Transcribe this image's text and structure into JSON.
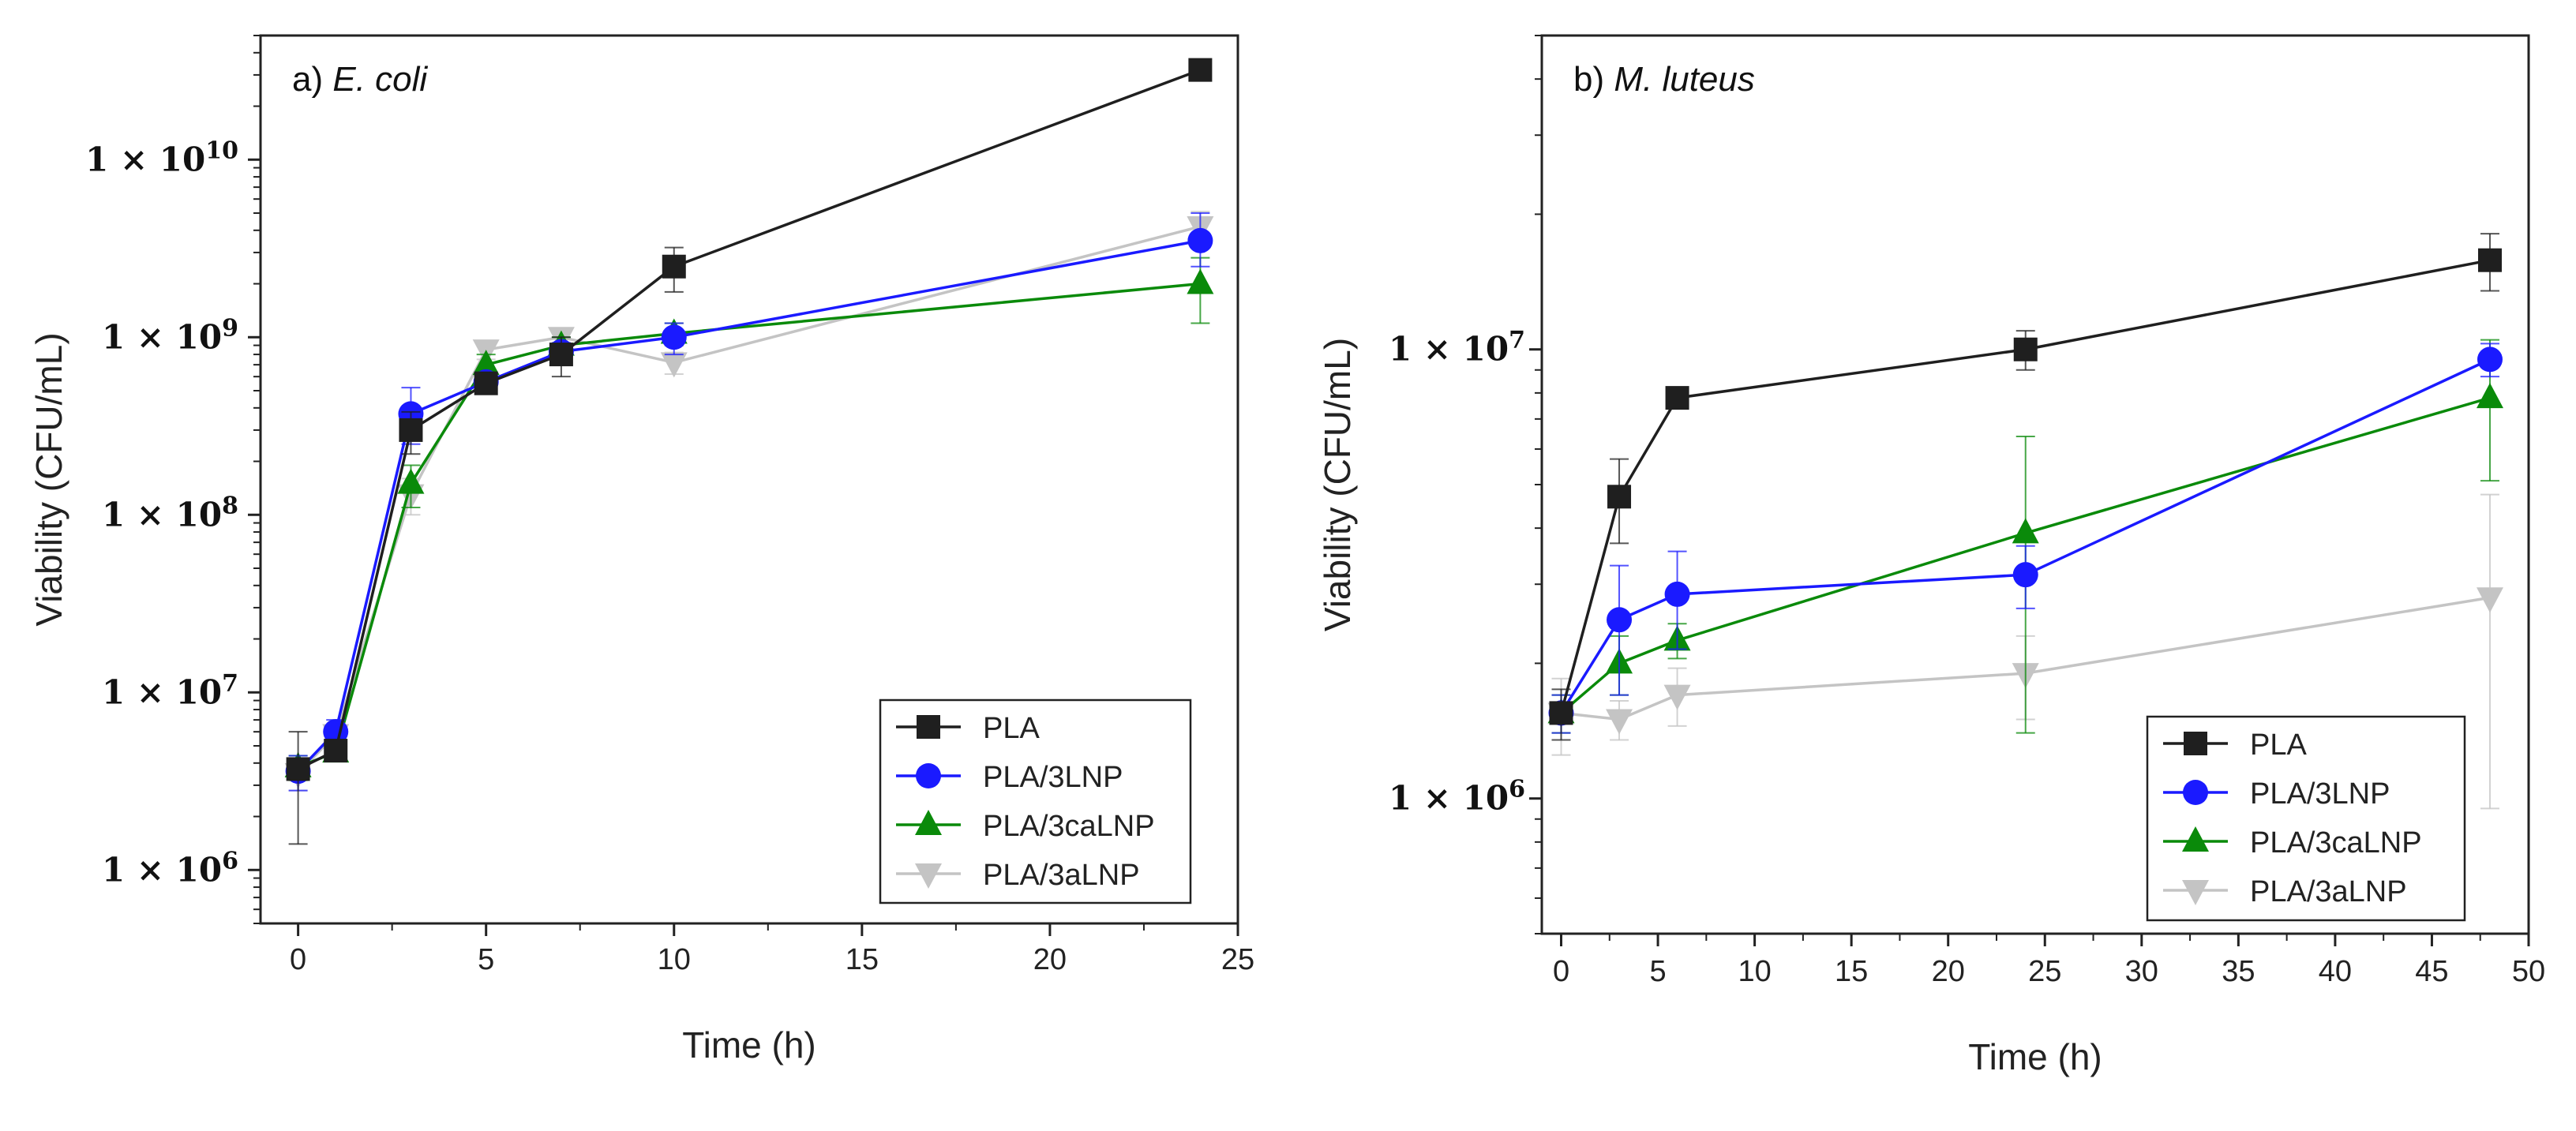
{
  "colors": {
    "PLA": "#1f1f1f",
    "PLA/3LNP": "#1a1aff",
    "PLA/3caLNP": "#0a8a0a",
    "PLA/3aLNP": "#c4c4c4"
  },
  "chart_data": [
    {
      "type": "line",
      "panel_label": "a)",
      "organism": "E. coli",
      "xlabel": "Time (h)",
      "ylabel": "Viability (CFU/mL)",
      "yscale": "log",
      "xlim": [
        -1,
        25
      ],
      "ylim": [
        500000,
        50000000000
      ],
      "xticks": [
        0,
        5,
        10,
        15,
        20,
        25
      ],
      "xtick_labels": [
        "0",
        "5",
        "10",
        "15",
        "20",
        "25"
      ],
      "yticks": [
        1000000,
        10000000,
        100000000,
        1000000000,
        10000000000
      ],
      "ytick_labels": [
        {
          "base": "1 × 10",
          "exp": "6"
        },
        {
          "base": "1 × 10",
          "exp": "7"
        },
        {
          "base": "1 × 10",
          "exp": "8"
        },
        {
          "base": "1 × 10",
          "exp": "9"
        },
        {
          "base": "1 × 10",
          "exp": "10"
        }
      ],
      "legend_position": "bottom-right",
      "series": [
        {
          "name": "PLA",
          "marker": "square",
          "x": [
            0,
            1,
            3,
            5,
            7,
            10,
            24
          ],
          "y": [
            3700000,
            4700000,
            300000000,
            550000000,
            800000000,
            2500000000,
            32000000000
          ],
          "err_lo": [
            2300000,
            400000,
            80000000,
            50000000,
            200000000,
            700000000,
            0
          ],
          "err_hi": [
            2300000,
            400000,
            80000000,
            50000000,
            200000000,
            700000000,
            0
          ]
        },
        {
          "name": "PLA/3LNP",
          "marker": "circle",
          "x": [
            0,
            1,
            3,
            5,
            7,
            10,
            24
          ],
          "y": [
            3600000,
            6000000,
            370000000,
            560000000,
            830000000,
            1000000000,
            3500000000
          ],
          "err_lo": [
            800000,
            1000000,
            120000000,
            60000000,
            100000000,
            200000000,
            1000000000
          ],
          "err_hi": [
            800000,
            1000000,
            150000000,
            60000000,
            100000000,
            200000000,
            1500000000
          ]
        },
        {
          "name": "PLA/3caLNP",
          "marker": "triangle-up",
          "x": [
            0,
            1,
            3,
            5,
            7,
            10,
            24
          ],
          "y": [
            3800000,
            4600000,
            150000000,
            700000000,
            900000000,
            1050000000,
            2000000000
          ],
          "err_lo": [
            600000,
            500000,
            40000000,
            100000000,
            100000000,
            150000000,
            800000000
          ],
          "err_hi": [
            600000,
            500000,
            40000000,
            100000000,
            100000000,
            150000000,
            800000000
          ]
        },
        {
          "name": "PLA/3aLNP",
          "marker": "triangle-down",
          "x": [
            0,
            1,
            3,
            5,
            7,
            10,
            24
          ],
          "y": [
            3500000,
            5800000,
            130000000,
            850000000,
            1000000000,
            720000000,
            4200000000
          ],
          "err_lo": [
            700000,
            800000,
            30000000,
            100000000,
            100000000,
            100000000,
            900000000
          ],
          "err_hi": [
            700000,
            800000,
            30000000,
            100000000,
            100000000,
            100000000,
            900000000
          ]
        }
      ]
    },
    {
      "type": "line",
      "panel_label": "b)",
      "organism": "M. luteus",
      "xlabel": "Time (h)",
      "ylabel": "Viability (CFU/mL)",
      "yscale": "log",
      "xlim": [
        -1,
        50
      ],
      "ylim": [
        500000,
        50000000
      ],
      "xticks": [
        0,
        5,
        10,
        15,
        20,
        25,
        30,
        35,
        40,
        45,
        50
      ],
      "xtick_labels": [
        "0",
        "5",
        "10",
        "15",
        "20",
        "25",
        "30",
        "35",
        "40",
        "45",
        "50"
      ],
      "yticks": [
        1000000,
        10000000
      ],
      "ytick_labels": [
        {
          "base": "1 × 10",
          "exp": "6"
        },
        {
          "base": "1 × 10",
          "exp": "7"
        }
      ],
      "legend_position": "bottom-right",
      "series": [
        {
          "name": "PLA",
          "marker": "square",
          "x": [
            0,
            3,
            6,
            24,
            48
          ],
          "y": [
            1550000,
            4700000,
            7800000,
            10000000,
            15800000
          ],
          "err_lo": [
            200000,
            1000000,
            200000,
            1000000,
            2300000
          ],
          "err_hi": [
            200000,
            1000000,
            200000,
            1000000,
            2300000
          ]
        },
        {
          "name": "PLA/3LNP",
          "marker": "circle",
          "x": [
            0,
            3,
            6,
            24,
            48
          ],
          "y": [
            1550000,
            2500000,
            2850000,
            3150000,
            9500000
          ],
          "err_lo": [
            150000,
            800000,
            700000,
            500000,
            800000
          ],
          "err_hi": [
            150000,
            800000,
            700000,
            500000,
            800000
          ]
        },
        {
          "name": "PLA/3caLNP",
          "marker": "triangle-up",
          "x": [
            0,
            3,
            6,
            24,
            48
          ],
          "y": [
            1550000,
            2000000,
            2250000,
            3900000,
            7800000
          ],
          "err_lo": [
            150000,
            300000,
            200000,
            2500000,
            2700000
          ],
          "err_hi": [
            150000,
            300000,
            200000,
            2500000,
            2700000
          ]
        },
        {
          "name": "PLA/3aLNP",
          "marker": "triangle-down",
          "x": [
            0,
            3,
            6,
            24,
            48
          ],
          "y": [
            1550000,
            1500000,
            1700000,
            1900000,
            2800000
          ],
          "err_lo": [
            300000,
            150000,
            250000,
            400000,
            1850000
          ],
          "err_hi": [
            300000,
            150000,
            250000,
            400000,
            1950000
          ]
        }
      ]
    }
  ]
}
